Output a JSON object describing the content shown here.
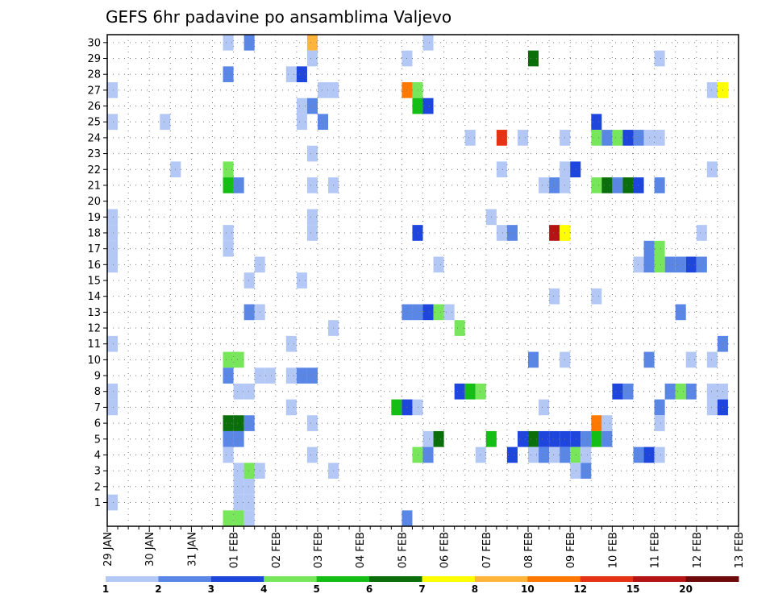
{
  "chart_data": {
    "type": "heatmap",
    "title": "GEFS 6hr padavine po ansamblima Valjevo",
    "x_ticks": [
      "29 JAN",
      "30 JAN",
      "31 JAN",
      "01 FEB",
      "02 FEB",
      "03 FEB",
      "04 FEB",
      "05 FEB",
      "06 FEB",
      "07 FEB",
      "08 FEB",
      "09 FEB",
      "10 FEB",
      "11 FEB",
      "12 FEB",
      "13 FEB"
    ],
    "x_range": [
      "29 JAN 00",
      "13 FEB 00"
    ],
    "y_ticks": [
      "1",
      "2",
      "3",
      "4",
      "5",
      "6",
      "7",
      "8",
      "9",
      "10",
      "11",
      "12",
      "13",
      "14",
      "15",
      "16",
      "17",
      "18",
      "19",
      "20",
      "21",
      "22",
      "23",
      "24",
      "25",
      "26",
      "27",
      "28",
      "29",
      "30"
    ],
    "y_range": [
      0,
      30
    ],
    "grid": true,
    "grid_style": "dotted",
    "legend_position": "bottom",
    "colorbar": {
      "labels": [
        "1",
        "2",
        "3",
        "4",
        "5",
        "6",
        "7",
        "8",
        "10",
        "12",
        "15",
        "20"
      ],
      "colors": [
        "#b4c8f5",
        "#5a87e6",
        "#1e46dc",
        "#78e65a",
        "#14be14",
        "#0a6e0a",
        "#ffff00",
        "#ffb43c",
        "#ff7800",
        "#e63214",
        "#b41414",
        "#6e0a0a"
      ]
    },
    "cells": [
      {
        "d": "29 JAN 06",
        "m": 27,
        "lvl": 1
      },
      {
        "d": "29 JAN 06",
        "m": 25,
        "lvl": 1
      },
      {
        "d": "29 JAN 06",
        "m": 19,
        "lvl": 1
      },
      {
        "d": "29 JAN 06",
        "m": 18,
        "lvl": 1
      },
      {
        "d": "29 JAN 06",
        "m": 17,
        "lvl": 1
      },
      {
        "d": "29 JAN 06",
        "m": 16,
        "lvl": 1
      },
      {
        "d": "29 JAN 06",
        "m": 11,
        "lvl": 1
      },
      {
        "d": "29 JAN 06",
        "m": 8,
        "lvl": 1
      },
      {
        "d": "29 JAN 06",
        "m": 7,
        "lvl": 1
      },
      {
        "d": "29 JAN 06",
        "m": 1,
        "lvl": 1
      },
      {
        "d": "30 JAN 12",
        "m": 25,
        "lvl": 1
      },
      {
        "d": "30 JAN 18",
        "m": 22,
        "lvl": 1
      },
      {
        "d": "01 FEB 00",
        "m": 30,
        "lvl": 1
      },
      {
        "d": "01 FEB 00",
        "m": 28,
        "lvl": 2
      },
      {
        "d": "01 FEB 00",
        "m": 22,
        "lvl": 4
      },
      {
        "d": "01 FEB 00",
        "m": 21,
        "lvl": 5
      },
      {
        "d": "01 FEB 00",
        "m": 18,
        "lvl": 1
      },
      {
        "d": "01 FEB 00",
        "m": 17,
        "lvl": 1
      },
      {
        "d": "01 FEB 00",
        "m": 10,
        "lvl": 4
      },
      {
        "d": "01 FEB 00",
        "m": 9,
        "lvl": 2
      },
      {
        "d": "01 FEB 00",
        "m": 6,
        "lvl": 6
      },
      {
        "d": "01 FEB 00",
        "m": 5,
        "lvl": 2
      },
      {
        "d": "01 FEB 00",
        "m": 4,
        "lvl": 1
      },
      {
        "d": "01 FEB 00",
        "m": 0,
        "lvl": 4
      },
      {
        "d": "01 FEB 06",
        "m": 21,
        "lvl": 2
      },
      {
        "d": "01 FEB 06",
        "m": 10,
        "lvl": 4
      },
      {
        "d": "01 FEB 06",
        "m": 8,
        "lvl": 1
      },
      {
        "d": "01 FEB 06",
        "m": 6,
        "lvl": 6
      },
      {
        "d": "01 FEB 06",
        "m": 5,
        "lvl": 2
      },
      {
        "d": "01 FEB 06",
        "m": 3,
        "lvl": 1
      },
      {
        "d": "01 FEB 06",
        "m": 2,
        "lvl": 1
      },
      {
        "d": "01 FEB 06",
        "m": 1,
        "lvl": 1
      },
      {
        "d": "01 FEB 06",
        "m": 0,
        "lvl": 4
      },
      {
        "d": "01 FEB 12",
        "m": 30,
        "lvl": 2
      },
      {
        "d": "01 FEB 12",
        "m": 15,
        "lvl": 1
      },
      {
        "d": "01 FEB 12",
        "m": 13,
        "lvl": 2
      },
      {
        "d": "01 FEB 12",
        "m": 8,
        "lvl": 1
      },
      {
        "d": "01 FEB 12",
        "m": 6,
        "lvl": 2
      },
      {
        "d": "01 FEB 12",
        "m": 3,
        "lvl": 4
      },
      {
        "d": "01 FEB 12",
        "m": 2,
        "lvl": 1
      },
      {
        "d": "01 FEB 12",
        "m": 1,
        "lvl": 1
      },
      {
        "d": "01 FEB 12",
        "m": 0,
        "lvl": 1
      },
      {
        "d": "01 FEB 18",
        "m": 16,
        "lvl": 1
      },
      {
        "d": "01 FEB 18",
        "m": 13,
        "lvl": 1
      },
      {
        "d": "01 FEB 18",
        "m": 9,
        "lvl": 1
      },
      {
        "d": "01 FEB 18",
        "m": 3,
        "lvl": 1
      },
      {
        "d": "02 FEB 00",
        "m": 9,
        "lvl": 1
      },
      {
        "d": "02 FEB 12",
        "m": 28,
        "lvl": 1
      },
      {
        "d": "02 FEB 12",
        "m": 11,
        "lvl": 1
      },
      {
        "d": "02 FEB 12",
        "m": 9,
        "lvl": 1
      },
      {
        "d": "02 FEB 12",
        "m": 7,
        "lvl": 1
      },
      {
        "d": "02 FEB 18",
        "m": 28,
        "lvl": 3
      },
      {
        "d": "02 FEB 18",
        "m": 26,
        "lvl": 1
      },
      {
        "d": "02 FEB 18",
        "m": 25,
        "lvl": 1
      },
      {
        "d": "02 FEB 18",
        "m": 15,
        "lvl": 1
      },
      {
        "d": "02 FEB 18",
        "m": 9,
        "lvl": 2
      },
      {
        "d": "03 FEB 00",
        "m": 30,
        "lvl": 8
      },
      {
        "d": "03 FEB 00",
        "m": 29,
        "lvl": 1
      },
      {
        "d": "03 FEB 00",
        "m": 26,
        "lvl": 2
      },
      {
        "d": "03 FEB 00",
        "m": 23,
        "lvl": 1
      },
      {
        "d": "03 FEB 00",
        "m": 21,
        "lvl": 1
      },
      {
        "d": "03 FEB 00",
        "m": 19,
        "lvl": 1
      },
      {
        "d": "03 FEB 00",
        "m": 18,
        "lvl": 1
      },
      {
        "d": "03 FEB 00",
        "m": 9,
        "lvl": 2
      },
      {
        "d": "03 FEB 00",
        "m": 6,
        "lvl": 1
      },
      {
        "d": "03 FEB 00",
        "m": 4,
        "lvl": 1
      },
      {
        "d": "03 FEB 06",
        "m": 27,
        "lvl": 1
      },
      {
        "d": "03 FEB 06",
        "m": 25,
        "lvl": 2
      },
      {
        "d": "03 FEB 12",
        "m": 27,
        "lvl": 1
      },
      {
        "d": "03 FEB 12",
        "m": 21,
        "lvl": 1
      },
      {
        "d": "03 FEB 12",
        "m": 12,
        "lvl": 1
      },
      {
        "d": "03 FEB 12",
        "m": 3,
        "lvl": 1
      },
      {
        "d": "05 FEB 00",
        "m": 7,
        "lvl": 5
      },
      {
        "d": "05 FEB 06",
        "m": 29,
        "lvl": 1
      },
      {
        "d": "05 FEB 06",
        "m": 27,
        "lvl": 9
      },
      {
        "d": "05 FEB 06",
        "m": 13,
        "lvl": 2
      },
      {
        "d": "05 FEB 06",
        "m": 7,
        "lvl": 3
      },
      {
        "d": "05 FEB 06",
        "m": 0,
        "lvl": 2
      },
      {
        "d": "05 FEB 12",
        "m": 27,
        "lvl": 4
      },
      {
        "d": "05 FEB 12",
        "m": 26,
        "lvl": 5
      },
      {
        "d": "05 FEB 12",
        "m": 18,
        "lvl": 3
      },
      {
        "d": "05 FEB 12",
        "m": 13,
        "lvl": 2
      },
      {
        "d": "05 FEB 12",
        "m": 7,
        "lvl": 1
      },
      {
        "d": "05 FEB 12",
        "m": 4,
        "lvl": 4
      },
      {
        "d": "05 FEB 18",
        "m": 30,
        "lvl": 1
      },
      {
        "d": "05 FEB 18",
        "m": 26,
        "lvl": 3
      },
      {
        "d": "05 FEB 18",
        "m": 13,
        "lvl": 3
      },
      {
        "d": "05 FEB 18",
        "m": 5,
        "lvl": 1
      },
      {
        "d": "05 FEB 18",
        "m": 4,
        "lvl": 2
      },
      {
        "d": "06 FEB 00",
        "m": 16,
        "lvl": 1
      },
      {
        "d": "06 FEB 00",
        "m": 13,
        "lvl": 4
      },
      {
        "d": "06 FEB 00",
        "m": 5,
        "lvl": 6
      },
      {
        "d": "06 FEB 06",
        "m": 13,
        "lvl": 1
      },
      {
        "d": "06 FEB 12",
        "m": 12,
        "lvl": 4
      },
      {
        "d": "06 FEB 12",
        "m": 8,
        "lvl": 3
      },
      {
        "d": "06 FEB 18",
        "m": 24,
        "lvl": 1
      },
      {
        "d": "06 FEB 18",
        "m": 8,
        "lvl": 5
      },
      {
        "d": "07 FEB 00",
        "m": 8,
        "lvl": 4
      },
      {
        "d": "07 FEB 00",
        "m": 4,
        "lvl": 1
      },
      {
        "d": "07 FEB 06",
        "m": 19,
        "lvl": 1
      },
      {
        "d": "07 FEB 06",
        "m": 5,
        "lvl": 5
      },
      {
        "d": "07 FEB 12",
        "m": 24,
        "lvl": 10
      },
      {
        "d": "07 FEB 12",
        "m": 22,
        "lvl": 1
      },
      {
        "d": "07 FEB 12",
        "m": 18,
        "lvl": 1
      },
      {
        "d": "07 FEB 18",
        "m": 18,
        "lvl": 2
      },
      {
        "d": "07 FEB 18",
        "m": 4,
        "lvl": 3
      },
      {
        "d": "08 FEB 00",
        "m": 24,
        "lvl": 1
      },
      {
        "d": "08 FEB 00",
        "m": 5,
        "lvl": 3
      },
      {
        "d": "08 FEB 06",
        "m": 29,
        "lvl": 6
      },
      {
        "d": "08 FEB 06",
        "m": 10,
        "lvl": 2
      },
      {
        "d": "08 FEB 06",
        "m": 5,
        "lvl": 6
      },
      {
        "d": "08 FEB 06",
        "m": 4,
        "lvl": 1
      },
      {
        "d": "08 FEB 12",
        "m": 21,
        "lvl": 1
      },
      {
        "d": "08 FEB 12",
        "m": 7,
        "lvl": 1
      },
      {
        "d": "08 FEB 12",
        "m": 5,
        "lvl": 3
      },
      {
        "d": "08 FEB 12",
        "m": 4,
        "lvl": 2
      },
      {
        "d": "08 FEB 18",
        "m": 21,
        "lvl": 2
      },
      {
        "d": "08 FEB 18",
        "m": 18,
        "lvl": 11
      },
      {
        "d": "08 FEB 18",
        "m": 14,
        "lvl": 1
      },
      {
        "d": "08 FEB 18",
        "m": 5,
        "lvl": 3
      },
      {
        "d": "08 FEB 18",
        "m": 4,
        "lvl": 1
      },
      {
        "d": "09 FEB 00",
        "m": 24,
        "lvl": 1
      },
      {
        "d": "09 FEB 00",
        "m": 22,
        "lvl": 1
      },
      {
        "d": "09 FEB 00",
        "m": 21,
        "lvl": 1
      },
      {
        "d": "09 FEB 00",
        "m": 18,
        "lvl": 7
      },
      {
        "d": "09 FEB 00",
        "m": 10,
        "lvl": 1
      },
      {
        "d": "09 FEB 00",
        "m": 5,
        "lvl": 3
      },
      {
        "d": "09 FEB 00",
        "m": 4,
        "lvl": 2
      },
      {
        "d": "09 FEB 06",
        "m": 22,
        "lvl": 3
      },
      {
        "d": "09 FEB 06",
        "m": 5,
        "lvl": 3
      },
      {
        "d": "09 FEB 06",
        "m": 4,
        "lvl": 4
      },
      {
        "d": "09 FEB 06",
        "m": 3,
        "lvl": 1
      },
      {
        "d": "09 FEB 12",
        "m": 5,
        "lvl": 2
      },
      {
        "d": "09 FEB 12",
        "m": 4,
        "lvl": 1
      },
      {
        "d": "09 FEB 12",
        "m": 3,
        "lvl": 2
      },
      {
        "d": "09 FEB 18",
        "m": 25,
        "lvl": 3
      },
      {
        "d": "09 FEB 18",
        "m": 24,
        "lvl": 4
      },
      {
        "d": "09 FEB 18",
        "m": 21,
        "lvl": 4
      },
      {
        "d": "09 FEB 18",
        "m": 14,
        "lvl": 1
      },
      {
        "d": "09 FEB 18",
        "m": 6,
        "lvl": 9
      },
      {
        "d": "09 FEB 18",
        "m": 5,
        "lvl": 5
      },
      {
        "d": "10 FEB 00",
        "m": 24,
        "lvl": 2
      },
      {
        "d": "10 FEB 00",
        "m": 21,
        "lvl": 6
      },
      {
        "d": "10 FEB 00",
        "m": 6,
        "lvl": 1
      },
      {
        "d": "10 FEB 00",
        "m": 5,
        "lvl": 2
      },
      {
        "d": "10 FEB 06",
        "m": 24,
        "lvl": 4
      },
      {
        "d": "10 FEB 06",
        "m": 21,
        "lvl": 2
      },
      {
        "d": "10 FEB 06",
        "m": 8,
        "lvl": 3
      },
      {
        "d": "10 FEB 12",
        "m": 24,
        "lvl": 3
      },
      {
        "d": "10 FEB 12",
        "m": 21,
        "lvl": 6
      },
      {
        "d": "10 FEB 12",
        "m": 8,
        "lvl": 2
      },
      {
        "d": "10 FEB 18",
        "m": 24,
        "lvl": 2
      },
      {
        "d": "10 FEB 18",
        "m": 21,
        "lvl": 3
      },
      {
        "d": "10 FEB 18",
        "m": 16,
        "lvl": 1
      },
      {
        "d": "10 FEB 18",
        "m": 4,
        "lvl": 2
      },
      {
        "d": "11 FEB 00",
        "m": 24,
        "lvl": 1
      },
      {
        "d": "11 FEB 00",
        "m": 17,
        "lvl": 2
      },
      {
        "d": "11 FEB 00",
        "m": 16,
        "lvl": 2
      },
      {
        "d": "11 FEB 00",
        "m": 10,
        "lvl": 2
      },
      {
        "d": "11 FEB 00",
        "m": 4,
        "lvl": 3
      },
      {
        "d": "11 FEB 06",
        "m": 29,
        "lvl": 1
      },
      {
        "d": "11 FEB 06",
        "m": 24,
        "lvl": 1
      },
      {
        "d": "11 FEB 06",
        "m": 21,
        "lvl": 2
      },
      {
        "d": "11 FEB 06",
        "m": 17,
        "lvl": 4
      },
      {
        "d": "11 FEB 06",
        "m": 16,
        "lvl": 4
      },
      {
        "d": "11 FEB 06",
        "m": 7,
        "lvl": 2
      },
      {
        "d": "11 FEB 06",
        "m": 6,
        "lvl": 1
      },
      {
        "d": "11 FEB 06",
        "m": 4,
        "lvl": 1
      },
      {
        "d": "11 FEB 12",
        "m": 16,
        "lvl": 2
      },
      {
        "d": "11 FEB 12",
        "m": 8,
        "lvl": 2
      },
      {
        "d": "11 FEB 18",
        "m": 16,
        "lvl": 2
      },
      {
        "d": "11 FEB 18",
        "m": 13,
        "lvl": 2
      },
      {
        "d": "11 FEB 18",
        "m": 8,
        "lvl": 4
      },
      {
        "d": "12 FEB 00",
        "m": 16,
        "lvl": 3
      },
      {
        "d": "12 FEB 00",
        "m": 10,
        "lvl": 1
      },
      {
        "d": "12 FEB 00",
        "m": 8,
        "lvl": 2
      },
      {
        "d": "12 FEB 06",
        "m": 18,
        "lvl": 1
      },
      {
        "d": "12 FEB 06",
        "m": 16,
        "lvl": 2
      },
      {
        "d": "12 FEB 12",
        "m": 27,
        "lvl": 1
      },
      {
        "d": "12 FEB 12",
        "m": 22,
        "lvl": 1
      },
      {
        "d": "12 FEB 12",
        "m": 10,
        "lvl": 1
      },
      {
        "d": "12 FEB 12",
        "m": 8,
        "lvl": 1
      },
      {
        "d": "12 FEB 12",
        "m": 7,
        "lvl": 1
      },
      {
        "d": "12 FEB 18",
        "m": 27,
        "lvl": 7
      },
      {
        "d": "12 FEB 18",
        "m": 11,
        "lvl": 2
      },
      {
        "d": "12 FEB 18",
        "m": 8,
        "lvl": 1
      },
      {
        "d": "12 FEB 18",
        "m": 7,
        "lvl": 3
      }
    ]
  }
}
